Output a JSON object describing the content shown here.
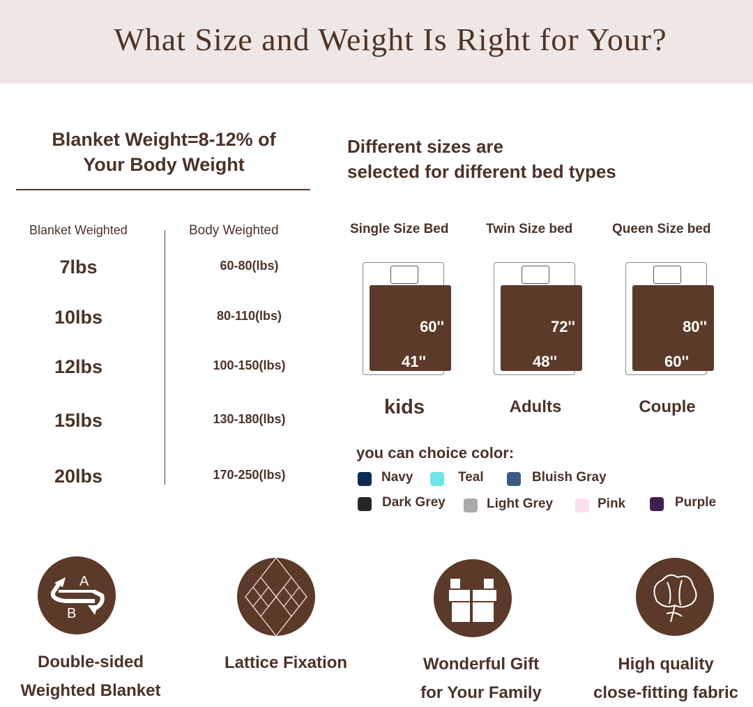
{
  "title": "What Size and Weight Is Right for Your?",
  "weight": {
    "heading_line1": "Blanket Weight=8-12% of",
    "heading_line2": "Your Body Weight",
    "col1": "Blanket Weighted",
    "col2": "Body Weighted",
    "rows": [
      {
        "blanket": "7lbs",
        "body": "60-80(lbs)"
      },
      {
        "blanket": "10lbs",
        "body": "80-110(lbs)"
      },
      {
        "blanket": "12lbs",
        "body": "100-150(lbs)"
      },
      {
        "blanket": "15lbs",
        "body": "130-180(lbs)"
      },
      {
        "blanket": "20lbs",
        "body": "170-250(lbs)"
      }
    ]
  },
  "sizes": {
    "heading_line1": "Different sizes are",
    "heading_line2": "selected for different bed types",
    "beds": [
      {
        "name": "Single Size Bed",
        "length": "60''",
        "width": "41''",
        "user": "kids"
      },
      {
        "name": "Twin Size bed",
        "length": "72''",
        "width": "48''",
        "user": "Adults"
      },
      {
        "name": "Queen Size bed",
        "length": "80''",
        "width": "60''",
        "user": "Couple"
      }
    ]
  },
  "colors": {
    "label": "you can choice color:",
    "options": [
      {
        "name": "Navy",
        "hex": "#0d2b55"
      },
      {
        "name": "Teal",
        "hex": "#6fe3e6"
      },
      {
        "name": "Bluish Gray",
        "hex": "#3b5a86"
      },
      {
        "name": "Dark Grey",
        "hex": "#262626"
      },
      {
        "name": "Light Grey",
        "hex": "#aaaaaa"
      },
      {
        "name": "Pink",
        "hex": "#f9dff0"
      },
      {
        "name": "Purple",
        "hex": "#40204f"
      }
    ]
  },
  "features": [
    {
      "icon": "reversible-ab-icon",
      "line1": "Double-sided",
      "line2": "Weighted Blanket"
    },
    {
      "icon": "lattice-icon",
      "line1": "Lattice Fixation",
      "line2": ""
    },
    {
      "icon": "gift-icon",
      "line1": "Wonderful Gift",
      "line2": "for Your Family"
    },
    {
      "icon": "cotton-icon",
      "line1": "High quality",
      "line2": "close-fitting fabric"
    }
  ],
  "ab_letters": [
    "A",
    "B"
  ],
  "brand_color": "#5b3a29"
}
